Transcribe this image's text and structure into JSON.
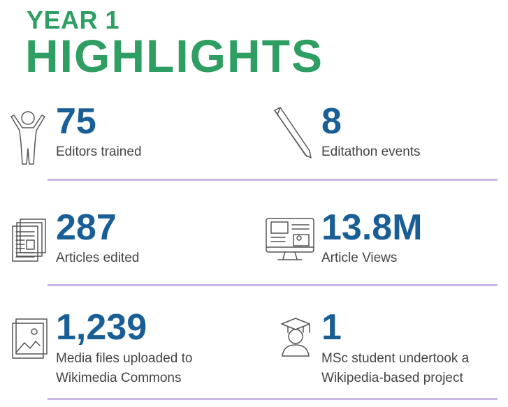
{
  "header": {
    "kicker": "YEAR 1",
    "title": "HIGHLIGHTS"
  },
  "stats": [
    {
      "value": "75",
      "label": "Editors trained"
    },
    {
      "value": "8",
      "label": "Editathon events"
    },
    {
      "value": "287",
      "label": "Articles edited"
    },
    {
      "value": "13.8M",
      "label": "Article Views"
    },
    {
      "value": "1,239",
      "label": "Media files uploaded to Wikimedia Commons"
    },
    {
      "value": "1",
      "label": "MSc student undertook a Wikipedia-based project"
    }
  ]
}
